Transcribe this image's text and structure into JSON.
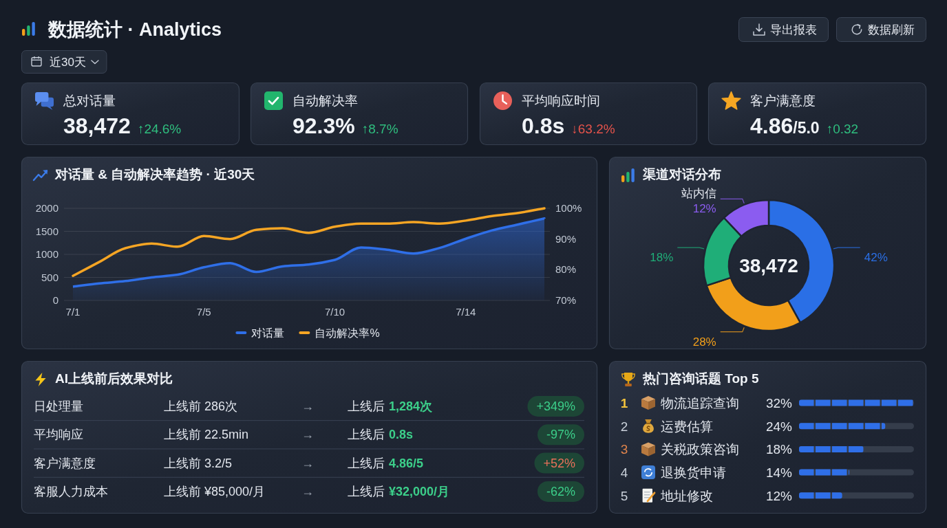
{
  "chart_data": [
    {
      "type": "other",
      "title": "数据统计 · Analytics",
      "annotations": [
        "近30天",
        "导出报表",
        "数据刷新"
      ]
    },
    {
      "type": "other",
      "title": "总对话量",
      "annotations": [
        "38,472",
        "↑24.6%"
      ],
      "color": "#2fbf7f"
    },
    {
      "type": "other",
      "title": "自动解决率",
      "annotations": [
        "92.3%",
        "↑8.7%"
      ],
      "color": "#2fbf7f"
    },
    {
      "type": "other",
      "title": "平均响应时间",
      "annotations": [
        "0.8s",
        "↓63.2%"
      ],
      "color": "#e5534b"
    },
    {
      "type": "other",
      "title": "客户满意度",
      "annotations": [
        "4.86",
        "/5.0",
        "↑0.32"
      ],
      "color": "#2fbf7f"
    },
    {
      "type": "line",
      "title": "对话量 & 自动解决率趋势 · 近30天",
      "categories": [
        "7/1",
        null,
        null,
        null,
        null,
        "7/5",
        null,
        null,
        null,
        null,
        "7/10",
        null,
        null,
        null,
        null,
        "7/14",
        null,
        null,
        null
      ],
      "series": [
        {
          "name": "对话量",
          "type": "area",
          "color": "#2f6fe8",
          "values": [
            300,
            370,
            420,
            500,
            560,
            720,
            810,
            620,
            740,
            780,
            880,
            1150,
            1100,
            1020,
            1140,
            1340,
            1520,
            1650,
            1780
          ]
        },
        {
          "name": "自动解决率%",
          "type": "line",
          "axis": "y2",
          "color": "#f5a524",
          "values": [
            78,
            82.5,
            87,
            88.5,
            87.5,
            91,
            90,
            93,
            93.5,
            92,
            94,
            95,
            95,
            95.5,
            95,
            96,
            97.5,
            98.5,
            100
          ]
        }
      ],
      "ylim": [
        0,
        2000
      ],
      "yticks": [
        0,
        500,
        1000,
        1500,
        2000
      ],
      "y2lim": [
        70,
        100
      ],
      "y2ticks": [
        {
          "value": 70,
          "label": "70%"
        },
        {
          "value": 80,
          "label": "80%"
        },
        {
          "value": 90,
          "label": "90%"
        },
        {
          "value": 100,
          "label": "100%"
        }
      ],
      "grid": "y",
      "legend": "bottom"
    },
    {
      "type": "donut",
      "title": "渠道对话分布",
      "categories": [
        null,
        null,
        null,
        "站内信"
      ],
      "values": [
        42,
        28,
        18,
        12
      ],
      "colors": [
        "#2a6fe6",
        "#f29f1a",
        "#1fae78",
        "#8b5cf0"
      ],
      "value_labels": [
        "42%",
        "28%",
        "18%",
        "12%"
      ],
      "annotations": [
        "38,472"
      ]
    },
    {
      "type": "other",
      "title": "AI上线前后效果对比",
      "categories": [
        "日处理量",
        "平均响应",
        "客户满意度",
        "客服人力成本"
      ],
      "annotations": [
        "上线前 286次",
        "→",
        "上线后",
        "1,284次",
        "+349%",
        "上线前 22.5min",
        "→",
        "上线后",
        "0.8s",
        "-97%",
        "上线前 3.2/5",
        "→",
        "上线后",
        "4.86/5",
        "+52%",
        "上线前 ¥85,000/月",
        "→",
        "上线后",
        "¥32,000/月",
        "-62%"
      ],
      "color": "#3ccf8a"
    },
    {
      "type": "bar",
      "orientation": "horizontal",
      "title": "热门咨询话题 Top 5",
      "categories": [
        "物流追踪查询",
        "运费估算",
        "关税政策咨询",
        "退换货申请",
        "地址修改"
      ],
      "values": [
        32,
        24,
        18,
        14,
        12
      ],
      "value_labels": [
        "32%",
        "24%",
        "18%",
        "14%",
        "12%"
      ],
      "color": "#2f6fe8",
      "annotations": [
        "1",
        "2",
        "3",
        "4",
        "5"
      ]
    }
  ]
}
